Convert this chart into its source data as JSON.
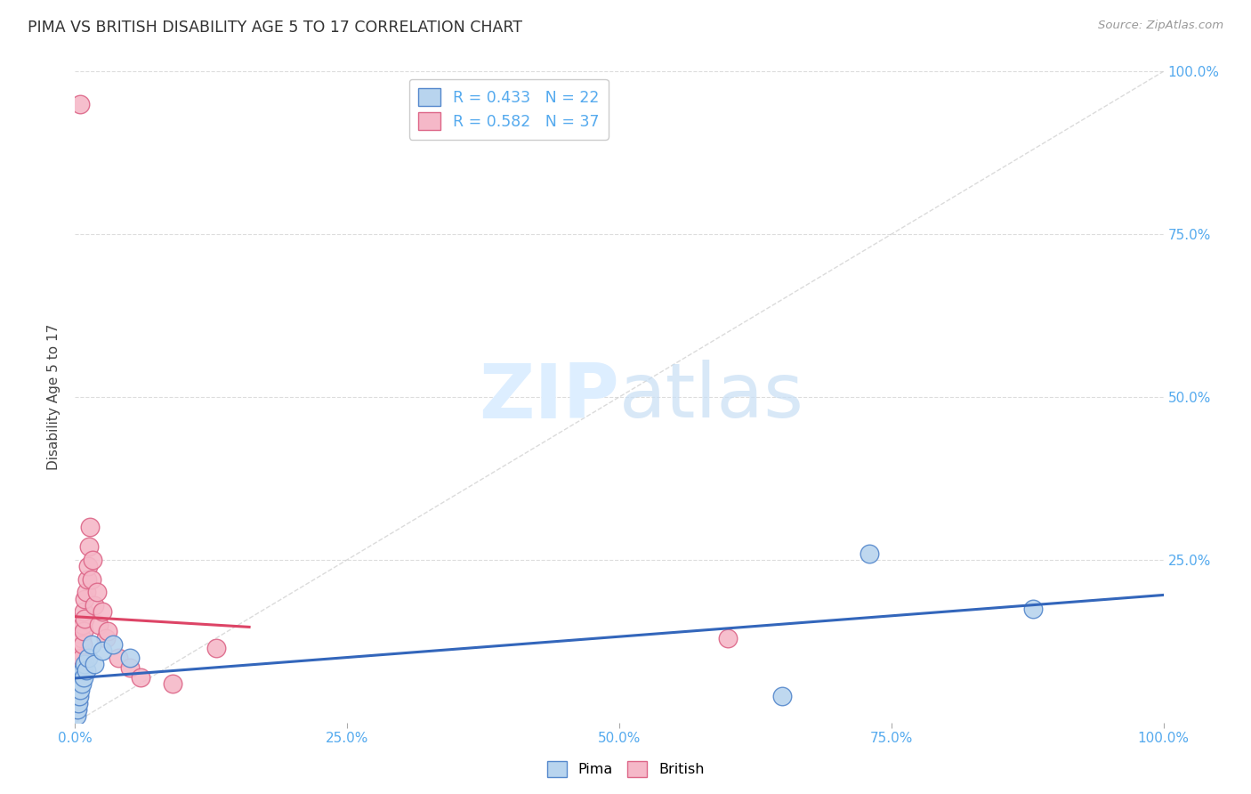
{
  "title": "PIMA VS BRITISH DISABILITY AGE 5 TO 17 CORRELATION CHART",
  "source": "Source: ZipAtlas.com",
  "ylabel": "Disability Age 5 to 17",
  "pima_R": 0.433,
  "pima_N": 22,
  "british_R": 0.582,
  "british_N": 37,
  "pima_color": "#b8d4ee",
  "pima_edge_color": "#5588cc",
  "pima_line_color": "#3366bb",
  "british_color": "#f5b8c8",
  "british_edge_color": "#dd6688",
  "british_line_color": "#dd4466",
  "ref_line_color": "#cccccc",
  "bg_color": "#ffffff",
  "grid_color": "#dddddd",
  "axis_label_color": "#55aaee",
  "watermark_color": "#ddeeff",
  "pima_x": [
    0.001,
    0.002,
    0.002,
    0.003,
    0.003,
    0.004,
    0.004,
    0.005,
    0.006,
    0.007,
    0.008,
    0.009,
    0.01,
    0.012,
    0.015,
    0.018,
    0.025,
    0.035,
    0.05,
    0.65,
    0.73,
    0.88
  ],
  "pima_y": [
    0.01,
    0.02,
    0.04,
    0.03,
    0.06,
    0.04,
    0.07,
    0.05,
    0.06,
    0.08,
    0.07,
    0.09,
    0.08,
    0.1,
    0.12,
    0.09,
    0.11,
    0.12,
    0.1,
    0.04,
    0.26,
    0.175
  ],
  "brit_x": [
    0.001,
    0.002,
    0.002,
    0.003,
    0.003,
    0.004,
    0.004,
    0.005,
    0.005,
    0.006,
    0.006,
    0.007,
    0.007,
    0.008,
    0.008,
    0.009,
    0.009,
    0.01,
    0.011,
    0.012,
    0.013,
    0.014,
    0.015,
    0.016,
    0.018,
    0.02,
    0.022,
    0.025,
    0.028,
    0.03,
    0.04,
    0.05,
    0.06,
    0.09,
    0.13,
    0.6,
    0.005
  ],
  "brit_y": [
    0.02,
    0.03,
    0.05,
    0.04,
    0.07,
    0.06,
    0.09,
    0.08,
    0.11,
    0.1,
    0.13,
    0.12,
    0.15,
    0.14,
    0.17,
    0.16,
    0.19,
    0.2,
    0.22,
    0.24,
    0.27,
    0.3,
    0.22,
    0.25,
    0.18,
    0.2,
    0.15,
    0.17,
    0.13,
    0.14,
    0.1,
    0.085,
    0.07,
    0.06,
    0.115,
    0.13,
    0.95
  ],
  "brit_line_x_start": 0.0,
  "brit_line_x_end": 0.16,
  "pima_line_x_start": 0.0,
  "pima_line_x_end": 1.0,
  "xlim": [
    0,
    1
  ],
  "ylim": [
    0,
    1
  ],
  "x_ticks": [
    0,
    0.25,
    0.5,
    0.75,
    1.0
  ],
  "x_labels": [
    "0.0%",
    "25.0%",
    "50.0%",
    "75.0%",
    "100.0%"
  ],
  "y_ticks": [
    0,
    0.25,
    0.5,
    0.75,
    1.0
  ],
  "y_labels_right": [
    "",
    "25.0%",
    "50.0%",
    "75.0%",
    "100.0%"
  ]
}
